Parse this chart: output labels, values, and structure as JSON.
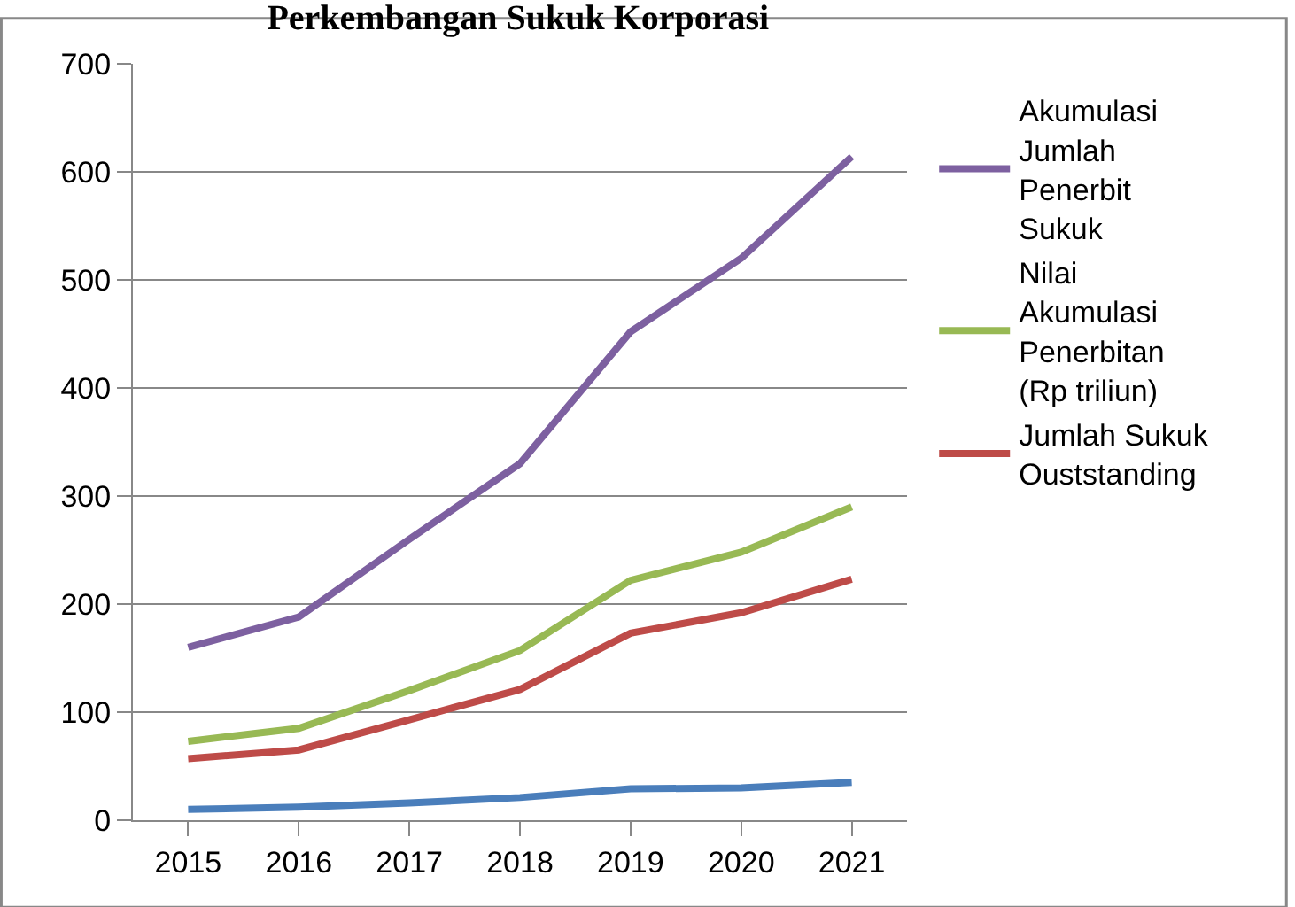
{
  "chart_data": {
    "type": "line",
    "title": "Perkembangan Sukuk Korporasi",
    "categories": [
      "2015",
      "2016",
      "2017",
      "2018",
      "2019",
      "2020",
      "2021"
    ],
    "series": [
      {
        "color": "#4a7ebb",
        "values": [
          10,
          12,
          16,
          21,
          29,
          30,
          35
        ]
      },
      {
        "name": "Jumlah Sukuk Ouststanding",
        "color": "#be4b48",
        "values": [
          57,
          65,
          93,
          121,
          173,
          192,
          223
        ]
      },
      {
        "name": "Nilai Akumulasi Penerbitan (Rp triliun)",
        "color": "#98b954",
        "values": [
          73,
          85,
          120,
          157,
          222,
          248,
          290
        ]
      },
      {
        "name": "Akumulasi Jumlah Penerbit Sukuk",
        "color": "#7d60a0",
        "values": [
          160,
          188,
          260,
          330,
          452,
          520,
          614
        ]
      }
    ],
    "ylim": [
      0,
      700
    ],
    "yticks": [
      0,
      100,
      200,
      300,
      400,
      500,
      600,
      700
    ],
    "grid": "y",
    "legend": "right",
    "marker": "none",
    "line_style": "solid"
  }
}
